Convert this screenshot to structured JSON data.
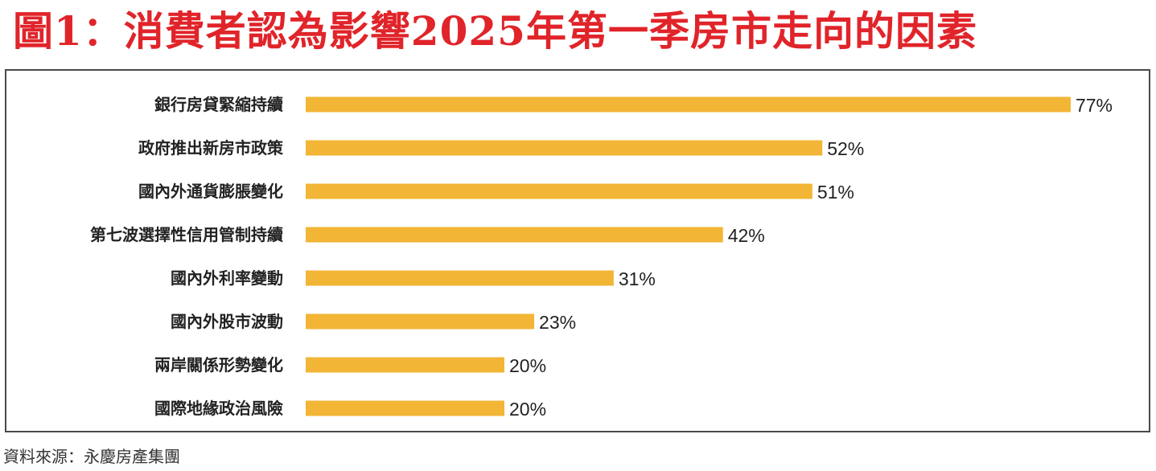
{
  "title": "圖1：消費者認為影響2025年第一季房市走向的因素",
  "source": "資料來源：永慶房產集團",
  "chart_data": {
    "type": "bar",
    "orientation": "horizontal",
    "categories": [
      "銀行房貸緊縮持續",
      "政府推出新房市政策",
      "國內外通貨膨脹變化",
      "第七波選擇性信用管制持續",
      "國內外利率變動",
      "國內外股市波動",
      "兩岸關係形勢變化",
      "國際地緣政治風險"
    ],
    "values": [
      77,
      52,
      51,
      42,
      31,
      23,
      20,
      20
    ],
    "value_labels": [
      "77%",
      "52%",
      "51%",
      "42%",
      "31%",
      "23%",
      "20%",
      "20%"
    ],
    "bar_color": "#f2b535",
    "xlim": [
      0,
      100
    ],
    "grid": false,
    "legend": "none"
  }
}
